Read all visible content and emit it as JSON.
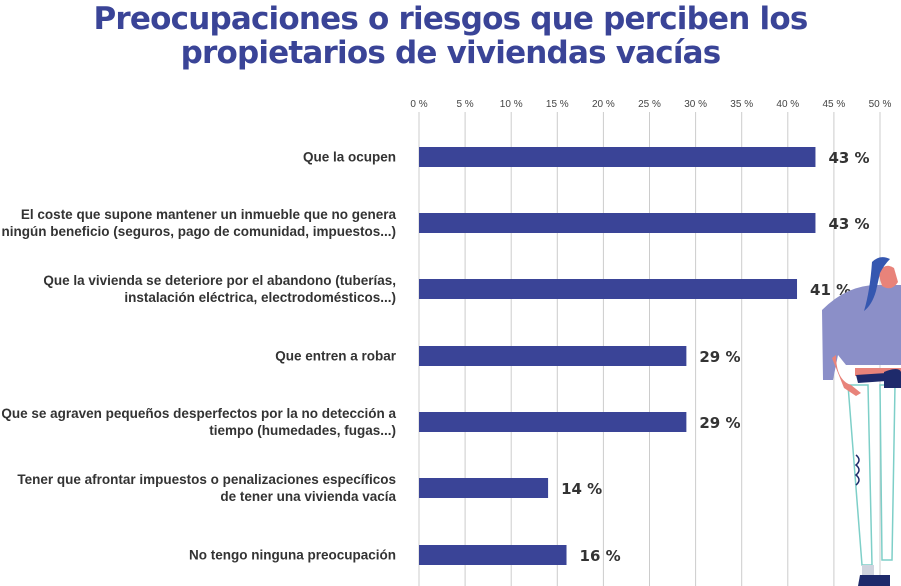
{
  "chart_data": {
    "type": "bar",
    "orientation": "horizontal",
    "title": "Preocupaciones o riesgos que perciben los propietarios de viviendas vacías",
    "title_lines": [
      "Preocupaciones o riesgos que perciben los",
      "propietarios de viviendas vacías"
    ],
    "categories": [
      "Que la ocupen",
      "El coste que supone mantener un inmueble que no genera\nningún beneficio (seguros, pago de comunidad, impuestos...)",
      "Que la vivienda se deteriore por el abandono (tuberías,\ninstalación eléctrica, electrodomésticos...)",
      "Que entren a robar",
      "Que se agraven pequeños desperfectos por la no detección a\ntiempo (humedades, fugas...)",
      "Tener que afrontar impuestos o penalizaciones específicos\nde tener una vivienda vacía",
      "No tengo ninguna preocupación"
    ],
    "values": [
      43,
      43,
      41,
      29,
      29,
      14,
      16
    ],
    "data_labels": [
      "43 %",
      "43 %",
      "41 %",
      "29 %",
      "29 %",
      "14 %",
      "16 %"
    ],
    "xlim": [
      0,
      50
    ],
    "ticks": [
      0,
      5,
      10,
      15,
      20,
      25,
      30,
      35,
      40,
      45,
      50
    ],
    "tick_labels": [
      "0 %",
      "5 %",
      "10 %",
      "15 %",
      "20 %",
      "25 %",
      "30 %",
      "35 %",
      "40 %",
      "45 %",
      "50 %"
    ],
    "axis_position": "top",
    "grid": true,
    "xlabel": "",
    "ylabel": "",
    "colors": {
      "bar": "#3a4497",
      "title": "#3a4497",
      "text": "#333333",
      "grid": "#cccccc"
    }
  },
  "illustration": {
    "icon": "woman-standing-illustration"
  }
}
